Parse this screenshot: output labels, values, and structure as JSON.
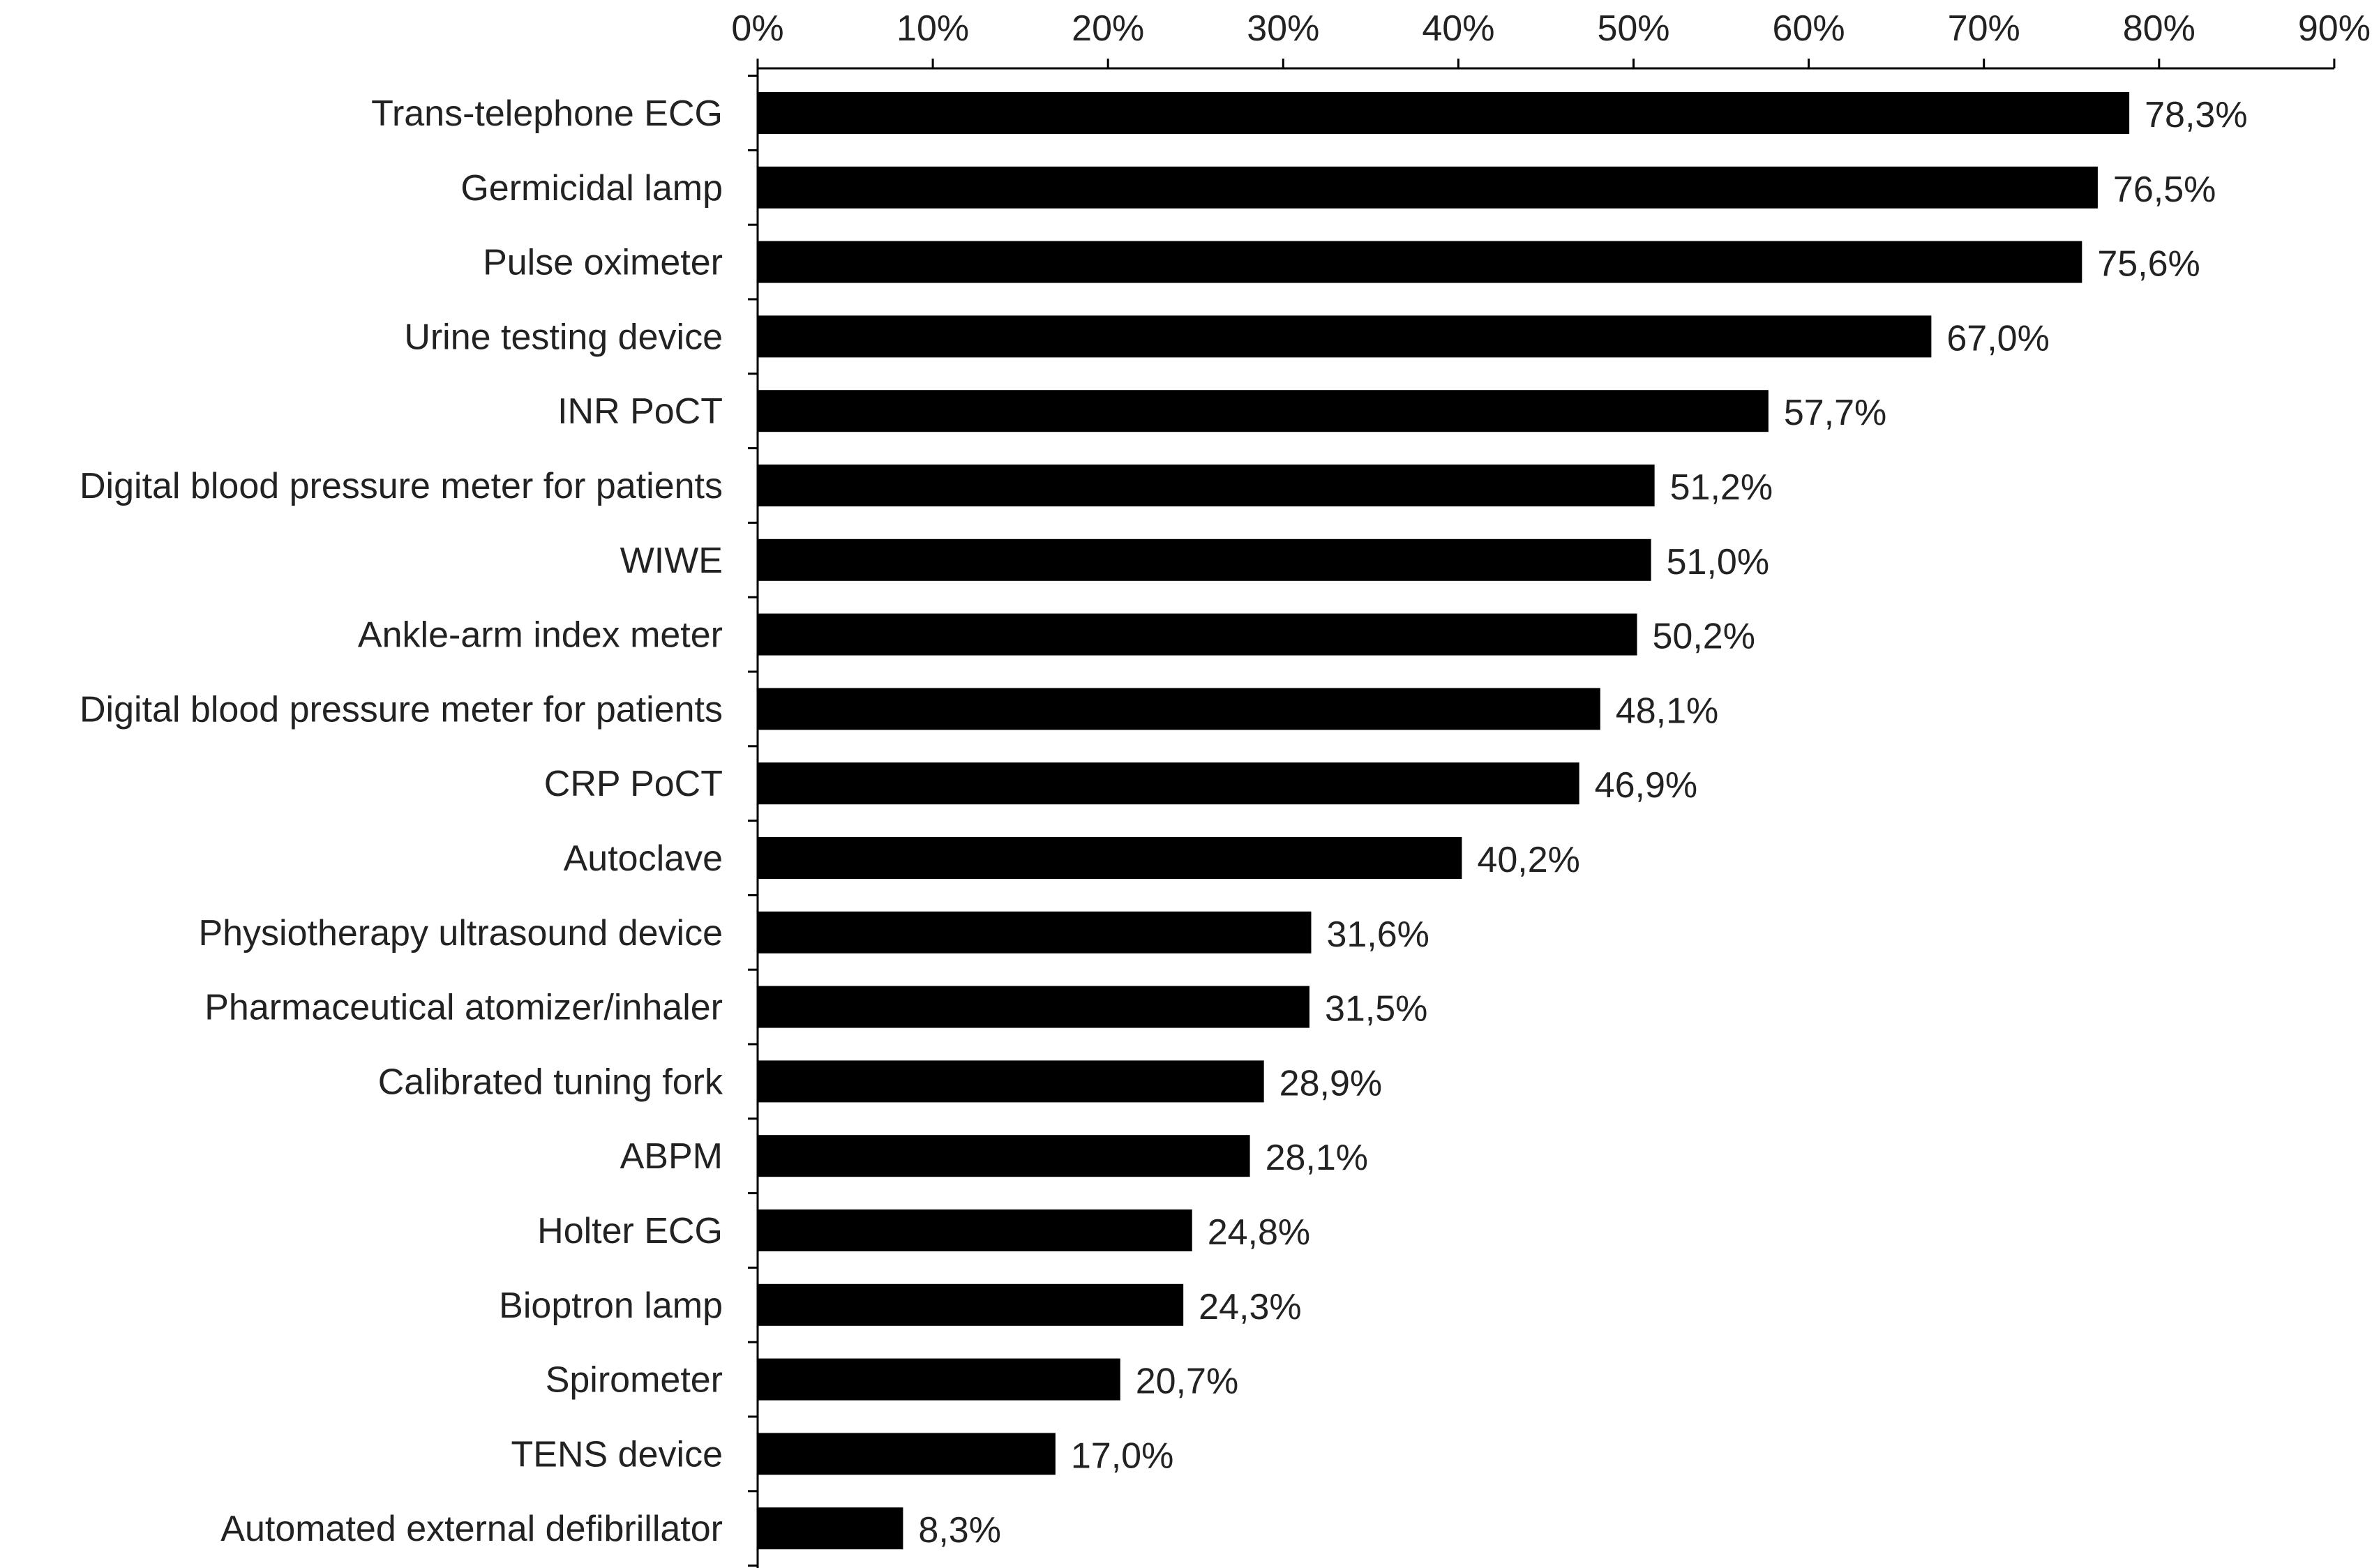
{
  "chart_data": {
    "type": "bar",
    "orientation": "horizontal",
    "title": "",
    "xlabel": "",
    "ylabel": "",
    "xlim": [
      0,
      90
    ],
    "xticks": [
      "0%",
      "10%",
      "20%",
      "30%",
      "40%",
      "50%",
      "60%",
      "70%",
      "80%",
      "90%"
    ],
    "x_axis_position": "top",
    "grid": false,
    "bar_color": "#000000",
    "categories": [
      "Trans-telephone ECG",
      "Germicidal lamp",
      "Pulse oximeter",
      "Urine testing device",
      "INR PoCT",
      "Digital blood pressure meter for patients",
      "WIWE",
      "Ankle-arm index meter",
      "Digital blood pressure meter for patients",
      "CRP PoCT",
      "Autoclave",
      "Physiotherapy ultrasound device",
      "Pharmaceutical atomizer/inhaler",
      "Calibrated tuning fork",
      "ABPM",
      "Holter ECG",
      "Bioptron lamp",
      "Spirometer",
      "TENS device",
      "Automated external defibrillator"
    ],
    "values": [
      78.3,
      76.5,
      75.6,
      67.0,
      57.7,
      51.2,
      51.0,
      50.2,
      48.1,
      46.9,
      40.2,
      31.6,
      31.5,
      28.9,
      28.1,
      24.8,
      24.3,
      20.7,
      17.0,
      8.3
    ],
    "data_labels": [
      "78,3%",
      "76,5%",
      "75,6%",
      "67,0%",
      "57,7%",
      "51,2%",
      "51,0%",
      "50,2%",
      "48,1%",
      "46,9%",
      "40,2%",
      "31,6%",
      "31,5%",
      "28,9%",
      "28,1%",
      "24,8%",
      "24,3%",
      "20,7%",
      "17,0%",
      "8,3%"
    ]
  }
}
